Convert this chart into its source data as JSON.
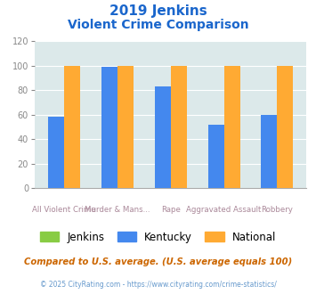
{
  "title_line1": "2019 Jenkins",
  "title_line2": "Violent Crime Comparison",
  "categories_top": [
    "",
    "Murder & Mans...",
    "",
    "Aggravated Assault",
    ""
  ],
  "categories_bot": [
    "All Violent Crime",
    "",
    "Rape",
    "",
    "Robbery"
  ],
  "jenkins_values": [
    0,
    0,
    0,
    0,
    0
  ],
  "kentucky_values": [
    58,
    99,
    83,
    52,
    60
  ],
  "national_values": [
    100,
    100,
    100,
    100,
    100
  ],
  "bar_colors": {
    "jenkins": "#88cc44",
    "kentucky": "#4488ee",
    "national": "#ffaa33"
  },
  "ylim": [
    0,
    120
  ],
  "yticks": [
    0,
    20,
    40,
    60,
    80,
    100,
    120
  ],
  "background_color": "#dce9ea",
  "title_color": "#1a66cc",
  "xlabel_color": "#aa8899",
  "ylabel_color": "#888888",
  "footer_text": "Compared to U.S. average. (U.S. average equals 100)",
  "copyright_text": "© 2025 CityRating.com - https://www.cityrating.com/crime-statistics/",
  "footer_color": "#cc6600",
  "copyright_color": "#6699cc"
}
